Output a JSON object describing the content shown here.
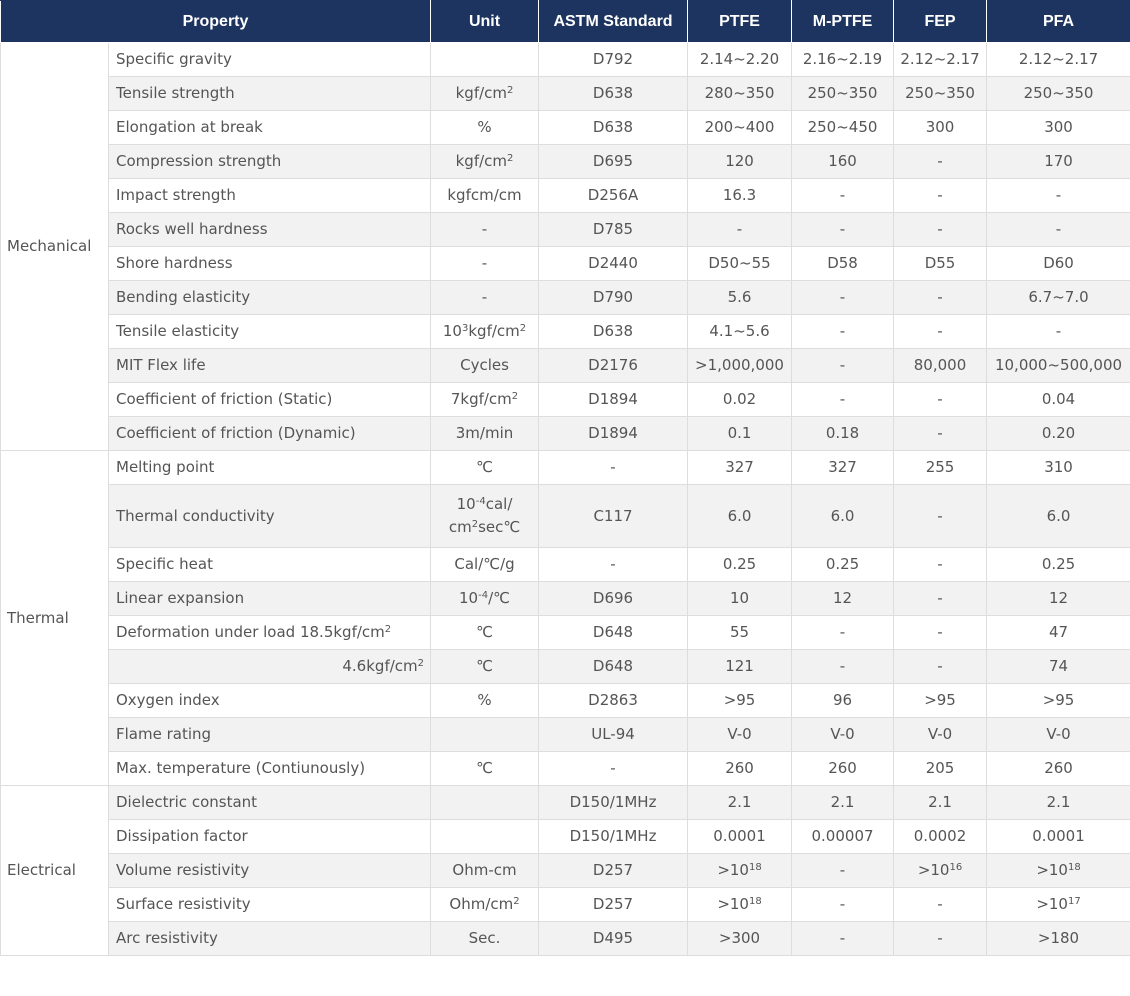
{
  "headers": {
    "property": "Property",
    "unit": "Unit",
    "astm": "ASTM Standard",
    "ptfe": "PTFE",
    "mptfe": "M-PTFE",
    "fep": "FEP",
    "pfa": "PFA"
  },
  "groups": {
    "mechanical": "Mechanical",
    "thermal": "Thermal",
    "electrical": "Electrical"
  },
  "mechanical": [
    {
      "property": "Specific gravity",
      "unit": "",
      "astm": "D792",
      "ptfe": "2.14~2.20",
      "mptfe": "2.16~2.19",
      "fep": "2.12~2.17",
      "pfa": "2.12~2.17"
    },
    {
      "property": "Tensile strength",
      "unit_base": "kgf/cm",
      "unit_sup": "2",
      "astm": "D638",
      "ptfe": "280~350",
      "mptfe": "250~350",
      "fep": "250~350",
      "pfa": "250~350"
    },
    {
      "property": "Elongation at break",
      "unit": "%",
      "astm": "D638",
      "ptfe": "200~400",
      "mptfe": "250~450",
      "fep": "300",
      "pfa": "300"
    },
    {
      "property": "Compression strength",
      "unit_base": "kgf/cm",
      "unit_sup": "2",
      "astm": "D695",
      "ptfe": "120",
      "mptfe": "160",
      "fep": "-",
      "pfa": "170"
    },
    {
      "property": "Impact strength",
      "unit": "kgfcm/cm",
      "astm": "D256A",
      "ptfe": "16.3",
      "mptfe": "-",
      "fep": "-",
      "pfa": "-"
    },
    {
      "property": "Rocks well hardness",
      "unit": "-",
      "astm": "D785",
      "ptfe": "-",
      "mptfe": "-",
      "fep": "-",
      "pfa": "-"
    },
    {
      "property": "Shore hardness",
      "unit": "-",
      "astm": "D2440",
      "ptfe": "D50~55",
      "mptfe": "D58",
      "fep": "D55",
      "pfa": "D60"
    },
    {
      "property": "Bending elasticity",
      "unit": "-",
      "astm": "D790",
      "ptfe": "5.6",
      "mptfe": "-",
      "fep": "-",
      "pfa": "6.7~7.0"
    },
    {
      "property": "Tensile elasticity",
      "unit_a": "10",
      "unit_sup_a": "3",
      "unit_b": "kgf/cm",
      "unit_sup_b": "2",
      "astm": "D638",
      "ptfe": "4.1~5.6",
      "mptfe": "-",
      "fep": "-",
      "pfa": "-"
    },
    {
      "property": "MIT Flex life",
      "unit": "Cycles",
      "astm": "D2176",
      "ptfe": ">1,000,000",
      "mptfe": "-",
      "fep": "80,000",
      "pfa": "10,000~500,000"
    },
    {
      "property": "Coefficient of friction (Static)",
      "unit_base": "7kgf/cm",
      "unit_sup": "2",
      "astm": "D1894",
      "ptfe": "0.02",
      "mptfe": "-",
      "fep": "-",
      "pfa": "0.04"
    },
    {
      "property": "Coefficient of friction (Dynamic)",
      "unit": "3m/min",
      "astm": "D1894",
      "ptfe": "0.1",
      "mptfe": "0.18",
      "fep": "-",
      "pfa": "0.20"
    }
  ],
  "thermal": [
    {
      "property": "Melting point",
      "unit": "℃",
      "astm": "-",
      "ptfe": "327",
      "mptfe": "327",
      "fep": "255",
      "pfa": "310"
    },
    {
      "property": "Thermal conductivity",
      "unit_a": "10",
      "unit_sup_a": "-4",
      "unit_b": "cal/",
      "unit_c": "cm",
      "unit_sup_c": "2",
      "unit_d": "sec℃",
      "astm": "C117",
      "ptfe": "6.0",
      "mptfe": "6.0",
      "fep": "-",
      "pfa": "6.0"
    },
    {
      "property": "Specific heat",
      "unit": "Cal/℃/g",
      "astm": "-",
      "ptfe": "0.25",
      "mptfe": "0.25",
      "fep": "-",
      "pfa": "0.25"
    },
    {
      "property": "Linear expansion",
      "unit_a": "10",
      "unit_sup_a": "-4",
      "unit_b": "/℃",
      "astm": "D696",
      "ptfe": "10",
      "mptfe": "12",
      "fep": "-",
      "pfa": "12"
    },
    {
      "property_base": "Deformation under load 18.5kgf/cm",
      "property_sup": "2",
      "unit": "℃",
      "astm": "D648",
      "ptfe": "55",
      "mptfe": "-",
      "fep": "-",
      "pfa": "47"
    },
    {
      "property_base": "4.6kgf/cm",
      "property_sup": "2",
      "unit": "℃",
      "astm": "D648",
      "ptfe": "121",
      "mptfe": "-",
      "fep": "-",
      "pfa": "74"
    },
    {
      "property": "Oxygen index",
      "unit": "%",
      "astm": "D2863",
      "ptfe": ">95",
      "mptfe": "96",
      "fep": ">95",
      "pfa": ">95"
    },
    {
      "property": "Flame rating",
      "unit": "",
      "astm": "UL-94",
      "ptfe": "V-0",
      "mptfe": "V-0",
      "fep": "V-0",
      "pfa": "V-0"
    },
    {
      "property": "Max. temperature (Contiunously)",
      "unit": "℃",
      "astm": "-",
      "ptfe": "260",
      "mptfe": "260",
      "fep": "205",
      "pfa": "260"
    }
  ],
  "electrical": [
    {
      "property": "Dielectric constant",
      "unit": "",
      "astm": "D150/1MHz",
      "ptfe": "2.1",
      "mptfe": "2.1",
      "fep": "2.1",
      "pfa": "2.1"
    },
    {
      "property": "Dissipation factor",
      "unit": "",
      "astm": "D150/1MHz",
      "ptfe": "0.0001",
      "mptfe": "0.00007",
      "fep": "0.0002",
      "pfa": "0.0001"
    },
    {
      "property": "Volume resistivity",
      "unit": "Ohm-cm",
      "astm": "D257",
      "ptfe_base": ">10",
      "ptfe_sup": "18",
      "mptfe": "-",
      "fep_base": ">10",
      "fep_sup": "16",
      "pfa_base": ">10",
      "pfa_sup": "18"
    },
    {
      "property": "Surface resistivity",
      "unit_base": "Ohm/cm",
      "unit_sup": "2",
      "astm": "D257",
      "ptfe_base": ">10",
      "ptfe_sup": "18",
      "mptfe": "-",
      "fep": "-",
      "pfa_base": ">10",
      "pfa_sup": "17"
    },
    {
      "property": "Arc resistivity",
      "unit": "Sec.",
      "astm": "D495",
      "ptfe": ">300",
      "mptfe": "-",
      "fep": "-",
      "pfa": ">180"
    }
  ]
}
